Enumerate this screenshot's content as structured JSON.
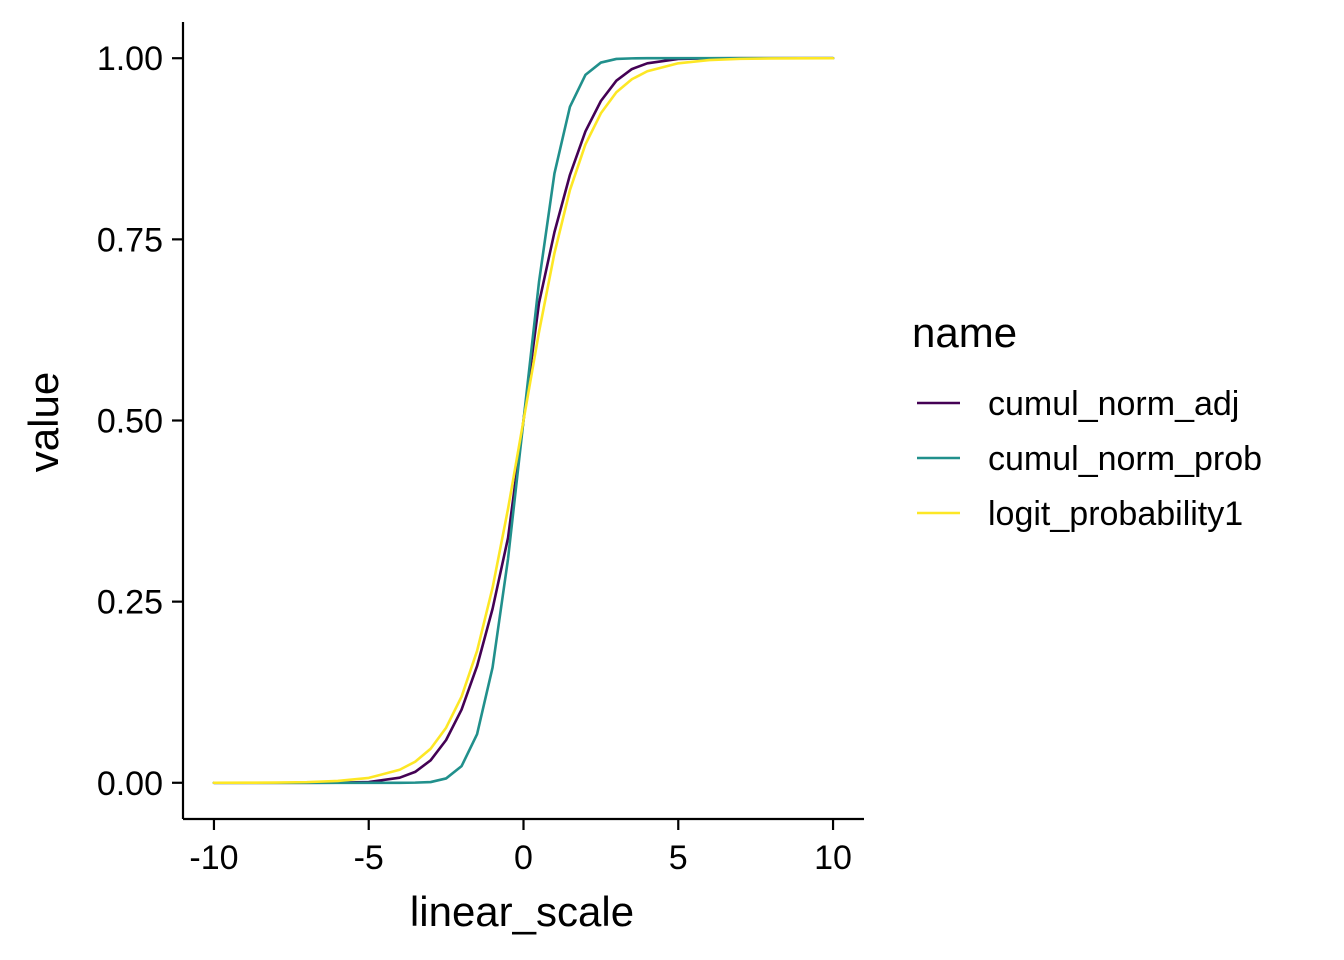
{
  "chart_data": {
    "type": "line",
    "xlabel": "linear_scale",
    "ylabel": "value",
    "xlim": [
      -11,
      11
    ],
    "ylim": [
      -0.05,
      1.05
    ],
    "x_ticks": [
      -10,
      -5,
      0,
      5,
      10
    ],
    "x_tick_labels": [
      "-10",
      "-5",
      "0",
      "5",
      "10"
    ],
    "y_ticks": [
      0,
      0.25,
      0.5,
      0.75,
      1.0
    ],
    "y_tick_labels": [
      "0.00",
      "0.25",
      "0.50",
      "0.75",
      "1.00"
    ],
    "grid": false,
    "legend": {
      "title": "name",
      "placement": "right"
    },
    "x": [
      -10,
      -9,
      -8,
      -7,
      -6,
      -5,
      -4,
      -3.5,
      -3,
      -2.5,
      -2,
      -1.5,
      -1,
      -0.5,
      0,
      0.5,
      1,
      1.5,
      2,
      2.5,
      3,
      3.5,
      4,
      5,
      6,
      7,
      8,
      9,
      10
    ],
    "series": [
      {
        "name": "cumul_norm_adj",
        "color": "#440154",
        "values": [
          0,
          0,
          0,
          0,
          0.0001,
          0.001,
          0.007,
          0.015,
          0.031,
          0.059,
          0.101,
          0.161,
          0.24,
          0.338,
          0.5,
          0.662,
          0.76,
          0.839,
          0.899,
          0.941,
          0.969,
          0.985,
          0.993,
          0.999,
          0.9999,
          1,
          1,
          1,
          1
        ]
      },
      {
        "name": "cumul_norm_prob",
        "color": "#21908C",
        "values": [
          0,
          0,
          0,
          0,
          0,
          0,
          0,
          0.0002,
          0.001,
          0.006,
          0.023,
          0.067,
          0.159,
          0.309,
          0.5,
          0.691,
          0.841,
          0.933,
          0.977,
          0.994,
          0.999,
          0.9998,
          1,
          1,
          1,
          1,
          1,
          1,
          1
        ]
      },
      {
        "name": "logit_probability1",
        "color": "#FDE725",
        "values": [
          5e-05,
          0.0001,
          0.0003,
          0.0009,
          0.0025,
          0.0067,
          0.018,
          0.029,
          0.047,
          0.076,
          0.119,
          0.182,
          0.269,
          0.378,
          0.5,
          0.622,
          0.731,
          0.818,
          0.881,
          0.924,
          0.953,
          0.971,
          0.982,
          0.993,
          0.9975,
          0.9991,
          0.9997,
          0.9999,
          0.99995
        ]
      }
    ]
  }
}
